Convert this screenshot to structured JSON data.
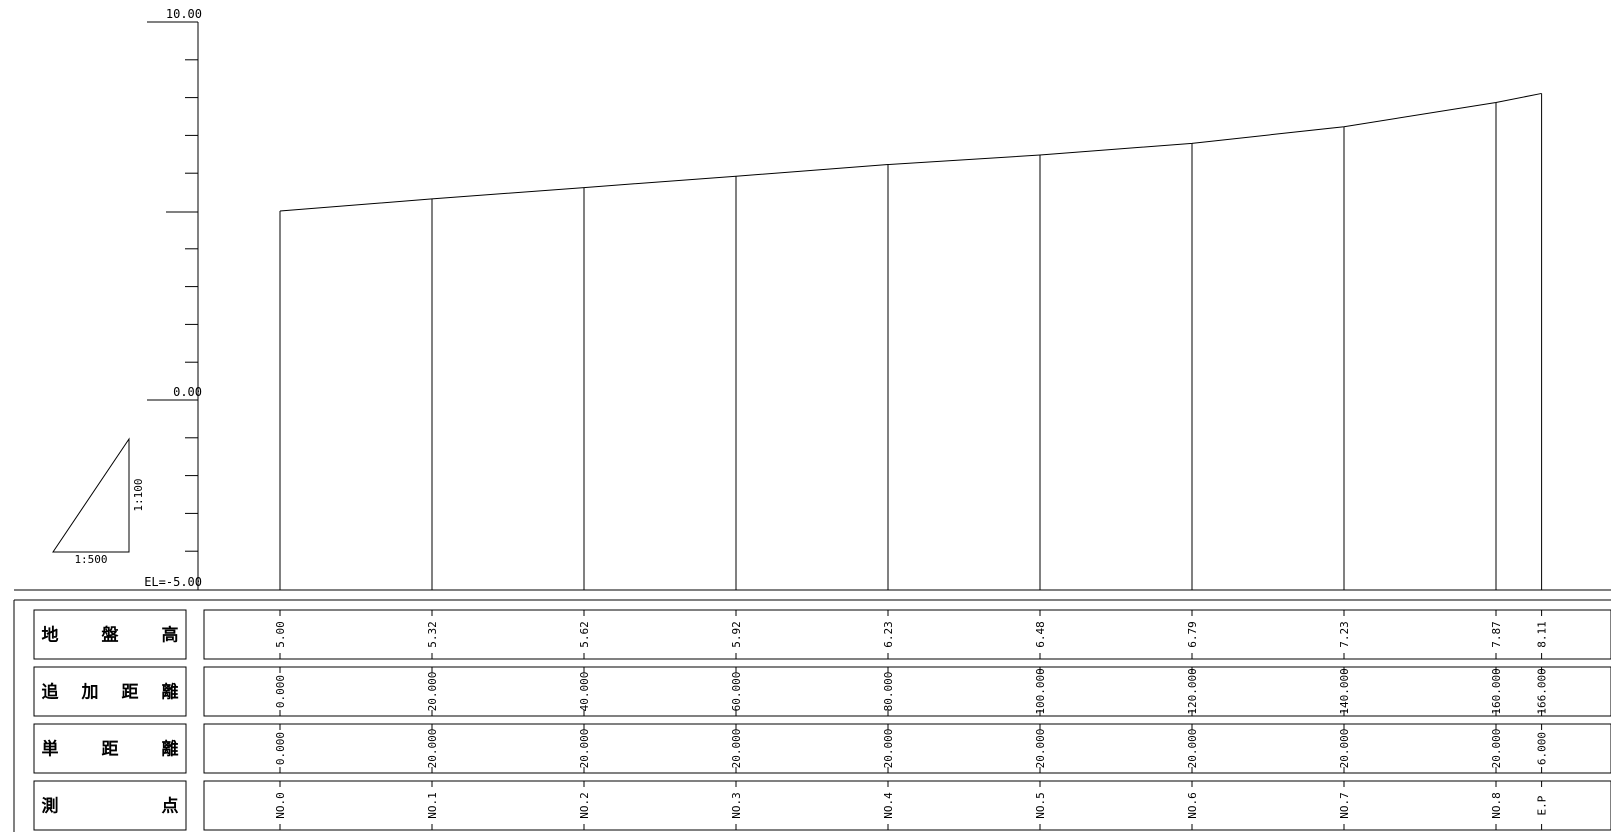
{
  "profile": {
    "elevation_labels": {
      "top": "10.00",
      "zero": "0.00",
      "bottom": "EL=-5.00"
    },
    "elevation_range": [
      -5,
      10
    ],
    "minor_tick_step": 1,
    "scale": {
      "horizontal": "1:500",
      "vertical": "1:100"
    }
  },
  "table": {
    "row_labels": [
      {
        "chars": [
          "地",
          "盤",
          "高"
        ]
      },
      {
        "chars": [
          "追",
          "加",
          "距",
          "離"
        ]
      },
      {
        "chars": [
          "単",
          "距",
          "離"
        ]
      },
      {
        "chars": [
          "測",
          "点"
        ]
      }
    ]
  },
  "chart_data": {
    "type": "line",
    "ylim": [
      -5,
      10
    ],
    "stations": [
      {
        "name": "NO.0",
        "cumulative": "0.000",
        "single": "0.000",
        "elevation": "5.00",
        "x": 0,
        "y": 5.0
      },
      {
        "name": "NO.1",
        "cumulative": "20.000",
        "single": "20.000",
        "elevation": "5.32",
        "x": 20,
        "y": 5.32
      },
      {
        "name": "NO.2",
        "cumulative": "40.000",
        "single": "20.000",
        "elevation": "5.62",
        "x": 40,
        "y": 5.62
      },
      {
        "name": "NO.3",
        "cumulative": "60.000",
        "single": "20.000",
        "elevation": "5.92",
        "x": 60,
        "y": 5.92
      },
      {
        "name": "NO.4",
        "cumulative": "80.000",
        "single": "20.000",
        "elevation": "6.23",
        "x": 80,
        "y": 6.23
      },
      {
        "name": "NO.5",
        "cumulative": "100.000",
        "single": "20.000",
        "elevation": "6.48",
        "x": 100,
        "y": 6.48
      },
      {
        "name": "NO.6",
        "cumulative": "120.000",
        "single": "20.000",
        "elevation": "6.79",
        "x": 120,
        "y": 6.79
      },
      {
        "name": "NO.7",
        "cumulative": "140.000",
        "single": "20.000",
        "elevation": "7.23",
        "x": 140,
        "y": 7.23
      },
      {
        "name": "NO.8",
        "cumulative": "160.000",
        "single": "20.000",
        "elevation": "7.87",
        "x": 160,
        "y": 7.87
      },
      {
        "name": "E.P",
        "cumulative": "166.000",
        "single": "6.000",
        "elevation": "8.11",
        "x": 166,
        "y": 8.11
      }
    ]
  }
}
